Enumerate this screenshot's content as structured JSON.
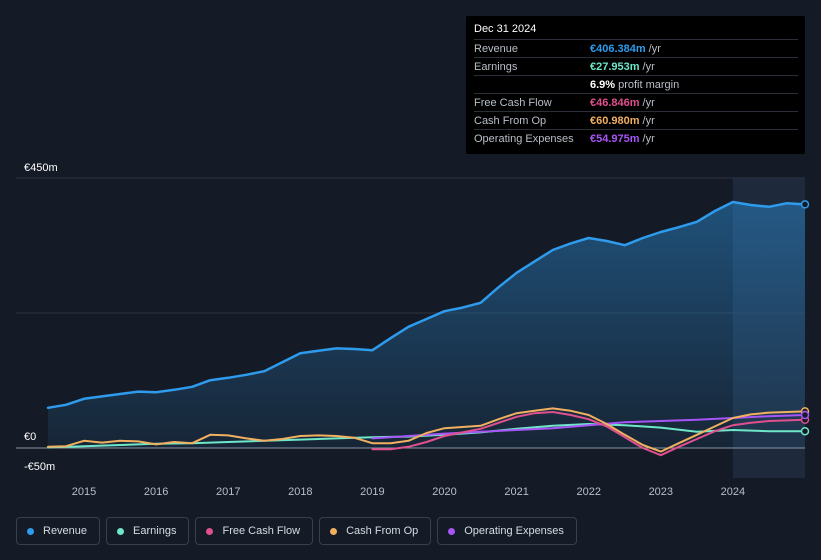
{
  "tooltip": {
    "date": "Dec 31 2024",
    "rows": [
      {
        "label": "Revenue",
        "value": "€406.384m",
        "unit": "/yr",
        "color": "#2e9bed"
      },
      {
        "label": "Earnings",
        "value": "€27.953m",
        "unit": "/yr",
        "color": "#6ee6c8"
      },
      {
        "label": "",
        "value": "6.9%",
        "unit": "profit margin",
        "color": "#ffffff"
      },
      {
        "label": "Free Cash Flow",
        "value": "€46.846m",
        "unit": "/yr",
        "color": "#e0508f"
      },
      {
        "label": "Cash From Op",
        "value": "€60.980m",
        "unit": "/yr",
        "color": "#f0b060"
      },
      {
        "label": "Operating Expenses",
        "value": "€54.975m",
        "unit": "/yr",
        "color": "#a855f7"
      }
    ]
  },
  "legend": [
    {
      "label": "Revenue",
      "color": "#2e9bed"
    },
    {
      "label": "Earnings",
      "color": "#6ee6c8"
    },
    {
      "label": "Free Cash Flow",
      "color": "#e0508f"
    },
    {
      "label": "Cash From Op",
      "color": "#f0b060"
    },
    {
      "label": "Operating Expenses",
      "color": "#a855f7"
    }
  ],
  "chart_data": {
    "type": "line",
    "title": "",
    "xlabel": "",
    "ylabel": "",
    "y_label_top": "€450m",
    "y_label_zero": "€0",
    "y_label_bottom": "-€50m",
    "ylim": [
      -50,
      450
    ],
    "xlim": [
      2014.5,
      2025.0
    ],
    "x_ticks": [
      2015,
      2016,
      2017,
      2018,
      2019,
      2020,
      2021,
      2022,
      2023,
      2024
    ],
    "x_tick_labels": [
      "2015",
      "2016",
      "2017",
      "2018",
      "2019",
      "2020",
      "2021",
      "2022",
      "2023",
      "2024"
    ],
    "highlight_from": 2024.0,
    "series": [
      {
        "name": "Revenue",
        "color": "#2e9bed",
        "fill": true,
        "x": [
          2014.5,
          2014.75,
          2015.0,
          2015.25,
          2015.5,
          2015.75,
          2016.0,
          2016.25,
          2016.5,
          2016.75,
          2017.0,
          2017.25,
          2017.5,
          2017.75,
          2018.0,
          2018.25,
          2018.5,
          2018.75,
          2019.0,
          2019.25,
          2019.5,
          2019.75,
          2020.0,
          2020.25,
          2020.5,
          2020.75,
          2021.0,
          2021.25,
          2021.5,
          2021.75,
          2022.0,
          2022.25,
          2022.5,
          2022.75,
          2023.0,
          2023.25,
          2023.5,
          2023.75,
          2024.0,
          2024.25,
          2024.5,
          2024.75,
          2025.0
        ],
        "values": [
          67,
          72,
          82,
          86,
          90,
          94,
          93,
          97,
          102,
          113,
          117,
          122,
          128,
          143,
          158,
          162,
          166,
          165,
          163,
          183,
          202,
          215,
          228,
          234,
          242,
          268,
          292,
          311,
          330,
          341,
          350,
          345,
          338,
          350,
          360,
          368,
          377,
          395,
          410,
          405,
          402,
          408,
          406
        ]
      },
      {
        "name": "Earnings",
        "color": "#6ee6c8",
        "fill": false,
        "x": [
          2014.5,
          2015.0,
          2015.5,
          2016.0,
          2016.5,
          2017.0,
          2017.5,
          2018.0,
          2018.5,
          2019.0,
          2019.5,
          2020.0,
          2020.5,
          2021.0,
          2021.5,
          2022.0,
          2022.5,
          2023.0,
          2023.5,
          2024.0,
          2024.5,
          2025.0
        ],
        "values": [
          1,
          3,
          5,
          7,
          8,
          10,
          12,
          14,
          16,
          18,
          19,
          22,
          26,
          32,
          37,
          40,
          38,
          34,
          27,
          30,
          28,
          28
        ]
      },
      {
        "name": "Free Cash Flow",
        "color": "#e0508f",
        "fill": false,
        "x": [
          2019.0,
          2019.25,
          2019.5,
          2019.75,
          2020.0,
          2020.25,
          2020.5,
          2020.75,
          2021.0,
          2021.25,
          2021.5,
          2021.75,
          2022.0,
          2022.25,
          2022.5,
          2022.75,
          2023.0,
          2023.25,
          2023.5,
          2023.75,
          2024.0,
          2024.25,
          2024.5,
          2024.75,
          2025.0
        ],
        "values": [
          -2,
          -2,
          2,
          10,
          20,
          26,
          32,
          42,
          52,
          58,
          60,
          55,
          48,
          36,
          18,
          0,
          -12,
          2,
          15,
          28,
          38,
          42,
          45,
          46,
          47
        ]
      },
      {
        "name": "Cash From Op",
        "color": "#f0b060",
        "fill": false,
        "x": [
          2014.5,
          2014.75,
          2015.0,
          2015.25,
          2015.5,
          2015.75,
          2016.0,
          2016.25,
          2016.5,
          2016.75,
          2017.0,
          2017.25,
          2017.5,
          2017.75,
          2018.0,
          2018.25,
          2018.5,
          2018.75,
          2019.0,
          2019.25,
          2019.5,
          2019.75,
          2020.0,
          2020.25,
          2020.5,
          2020.75,
          2021.0,
          2021.25,
          2021.5,
          2021.75,
          2022.0,
          2022.25,
          2022.5,
          2022.75,
          2023.0,
          2023.25,
          2023.5,
          2023.75,
          2024.0,
          2024.25,
          2024.5,
          2024.75,
          2025.0
        ],
        "values": [
          2,
          3,
          12,
          9,
          12,
          11,
          6,
          10,
          8,
          22,
          21,
          16,
          12,
          15,
          20,
          21,
          20,
          17,
          8,
          8,
          12,
          25,
          33,
          35,
          37,
          48,
          58,
          62,
          66,
          62,
          55,
          40,
          22,
          5,
          -6,
          8,
          22,
          36,
          50,
          56,
          59,
          60,
          61
        ]
      },
      {
        "name": "Operating Expenses",
        "color": "#a855f7",
        "fill": false,
        "x": [
          2019.0,
          2019.5,
          2020.0,
          2020.5,
          2021.0,
          2021.5,
          2022.0,
          2022.5,
          2023.0,
          2023.5,
          2024.0,
          2024.5,
          2025.0
        ],
        "values": [
          16,
          20,
          24,
          27,
          30,
          33,
          38,
          43,
          45,
          47,
          50,
          53,
          55
        ]
      }
    ]
  }
}
